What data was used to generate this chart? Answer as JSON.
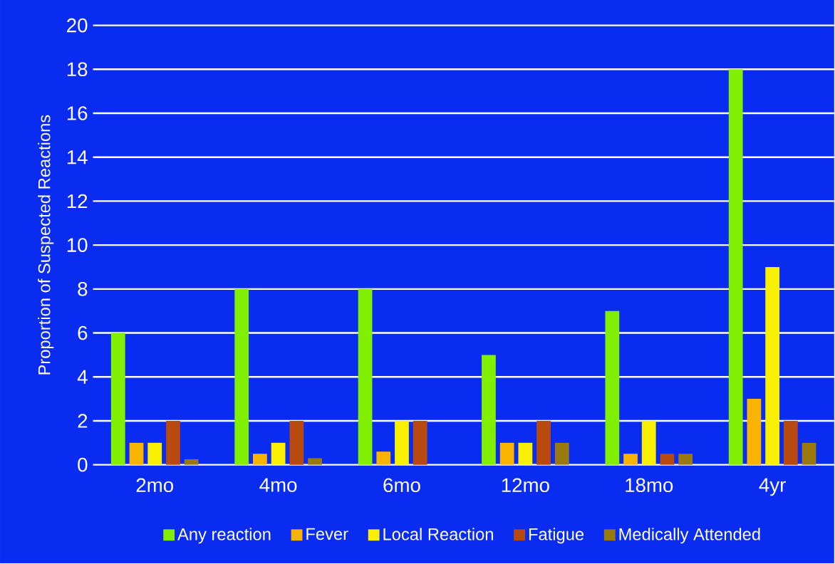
{
  "chart_data": {
    "type": "bar",
    "ylabel": "Proportion of Suspected Reactions",
    "categories": [
      "2mo",
      "4mo",
      "6mo",
      "12mo",
      "18mo",
      "4yr"
    ],
    "series": [
      {
        "name": "Any reaction",
        "color": "#80f000",
        "values": [
          6,
          8,
          8,
          5,
          7,
          18
        ]
      },
      {
        "name": "Fever",
        "color": "#f8b400",
        "values": [
          1,
          0.5,
          0.6,
          1,
          0.5,
          3
        ]
      },
      {
        "name": "Local Reaction",
        "color": "#f8f000",
        "values": [
          1,
          1,
          2,
          1,
          2,
          9
        ]
      },
      {
        "name": "Fatigue",
        "color": "#b84a10",
        "values": [
          2,
          2,
          2,
          2,
          0.5,
          2
        ]
      },
      {
        "name": "Medically Attended",
        "color": "#9a7a10",
        "values": [
          0.25,
          0.3,
          null,
          1,
          0.5,
          1
        ]
      }
    ],
    "ylim": [
      0,
      20
    ],
    "yticks": [
      0,
      2,
      4,
      6,
      8,
      10,
      12,
      14,
      16,
      18,
      20
    ],
    "grid": "y",
    "legend": "bottom"
  }
}
